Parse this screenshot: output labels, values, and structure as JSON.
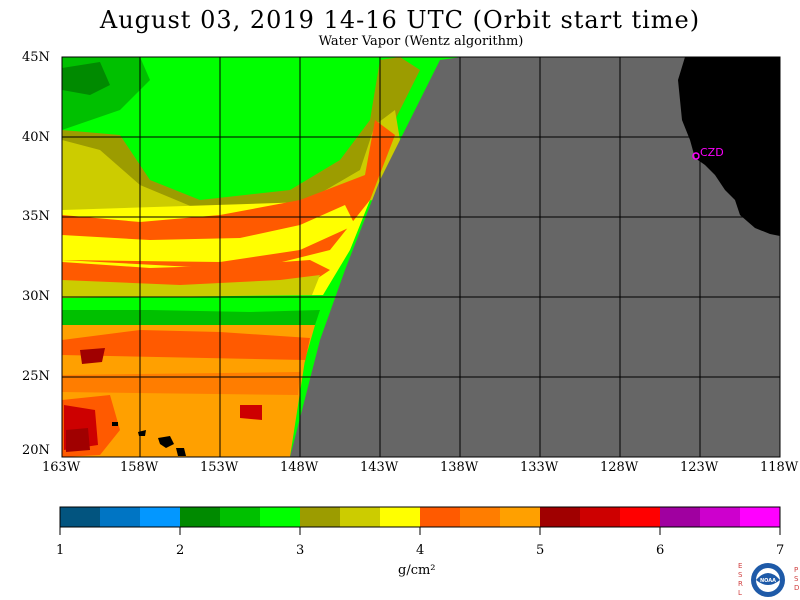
{
  "header": {
    "title": "August 03, 2019  14-16 UTC  (Orbit start time)",
    "subtitle": "Water Vapor (Wentz algorithm)"
  },
  "map": {
    "lat_labels": [
      "45N",
      "40N",
      "35N",
      "30N",
      "25N",
      "20N"
    ],
    "lon_labels": [
      "163W",
      "158W",
      "153W",
      "148W",
      "143W",
      "138W",
      "133W",
      "128W",
      "123W",
      "118W"
    ],
    "station_label": "CZD",
    "colors": {
      "no_data": "#666666",
      "land": "#000000",
      "station": "#ff00ff",
      "grid": "#000000"
    }
  },
  "colorbar": {
    "unit": "g/cm²",
    "tick_labels": [
      "1",
      "2",
      "3",
      "4",
      "5",
      "6",
      "7"
    ],
    "colors": [
      "#02547f",
      "#0075c4",
      "#0397ff",
      "#008a00",
      "#00c000",
      "#00ff00",
      "#9c9c00",
      "#cccc00",
      "#ffff00",
      "#ff5a00",
      "#ff7d00",
      "#ffa000",
      "#a00000",
      "#cd0000",
      "#ff0000",
      "#a000a0",
      "#cd00cd",
      "#ff00ff"
    ]
  },
  "logo": {
    "left_letters": "ESRL",
    "right_letters": "PSD",
    "center_text": "NOAA"
  }
}
